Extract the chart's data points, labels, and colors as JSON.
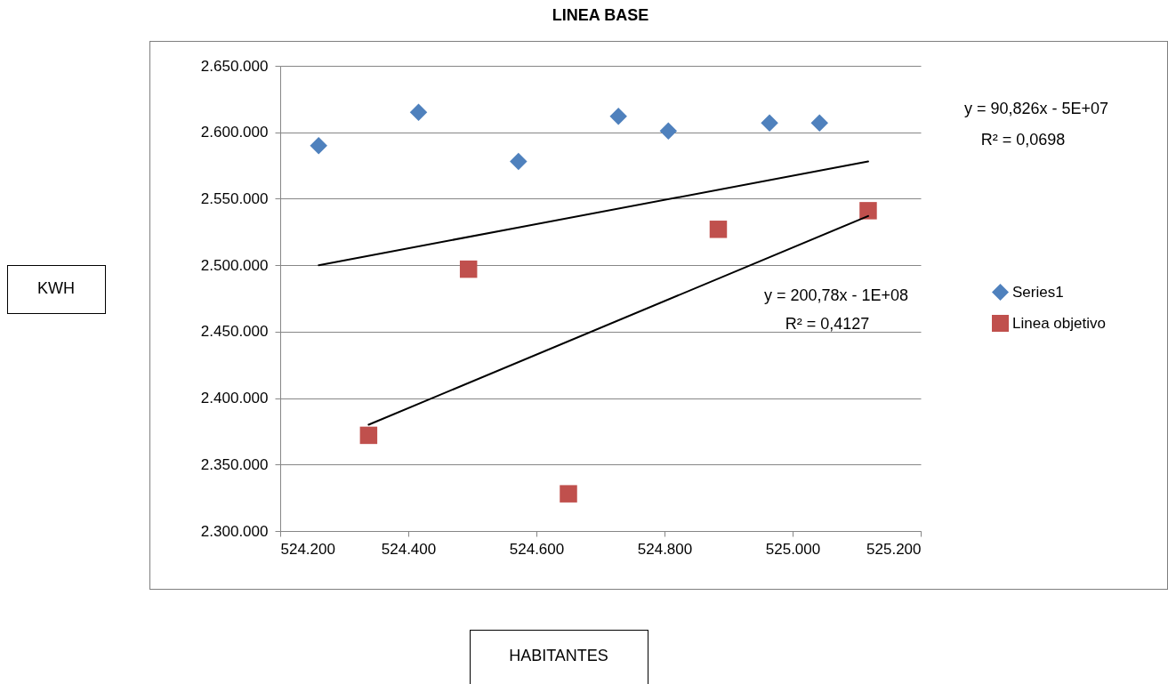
{
  "chart_data": {
    "type": "scatter",
    "title": "LINEA BASE",
    "xlim": [
      524200,
      525200
    ],
    "xticks": [
      {
        "value": 524200,
        "label": "524.200"
      },
      {
        "value": 524400,
        "label": "524.400"
      },
      {
        "value": 524600,
        "label": "524.600"
      },
      {
        "value": 524800,
        "label": "524.800"
      },
      {
        "value": 525000,
        "label": "525.000"
      },
      {
        "value": 525200,
        "label": "525.200"
      }
    ],
    "ylim": [
      2300000,
      2650000
    ],
    "yticks": [
      {
        "value": 2300000,
        "label": "2.300.000"
      },
      {
        "value": 2350000,
        "label": "2.350.000"
      },
      {
        "value": 2400000,
        "label": "2.400.000"
      },
      {
        "value": 2450000,
        "label": "2.450.000"
      },
      {
        "value": 2500000,
        "label": "2.500.000"
      },
      {
        "value": 2550000,
        "label": "2.550.000"
      },
      {
        "value": 2600000,
        "label": "2.600.000"
      },
      {
        "value": 2650000,
        "label": "2.650.000"
      }
    ],
    "grid": "y",
    "legend": "right",
    "series": [
      {
        "name": "Series1",
        "marker": "diamond",
        "color": "#4f81bd",
        "x": [
          524260,
          524416,
          524572,
          524728,
          524806,
          524964,
          525042
        ],
        "values": [
          2590000,
          2615000,
          2578000,
          2612000,
          2601000,
          2607000,
          2607000
        ]
      },
      {
        "name": "Linea objetivo",
        "marker": "square",
        "color": "#c0504d",
        "x": [
          524338,
          524494,
          524650,
          524884,
          525118
        ],
        "values": [
          2372000,
          2497000,
          2328000,
          2527000,
          2541000
        ]
      },
      {
        "type": "line",
        "color": "#000000",
        "x": [
          524260,
          525118
        ],
        "values": [
          2500000,
          2578000
        ]
      },
      {
        "type": "line",
        "color": "#000000",
        "x": [
          524338,
          525118
        ],
        "values": [
          2380000,
          2537000
        ]
      }
    ],
    "annotations": [
      "y = 90,826x - 5E+07",
      "R² = 0,0698",
      "y = 200,78x - 1E+08",
      "R² = 0,4127",
      "KWH",
      "HABITANTES"
    ]
  }
}
